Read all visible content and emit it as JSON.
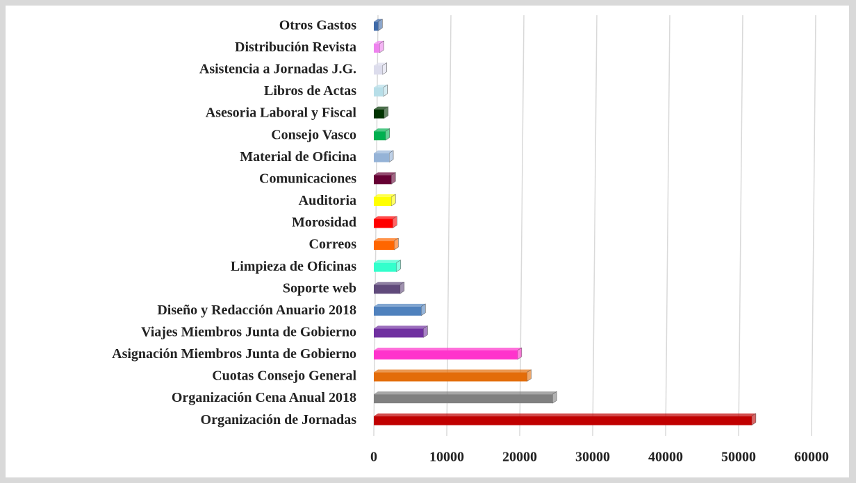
{
  "chart_data": {
    "type": "bar",
    "orientation": "horizontal",
    "categories": [
      "Organización de Jornadas",
      "Organización Cena Anual 2018",
      "Cuotas Consejo General",
      "Asignación Miembros Junta de Gobierno",
      "Viajes Miembros Junta de Gobierno",
      "Diseño y Redacción Anuario 2018",
      "Soporte web",
      "Limpieza de Oficinas",
      "Correos",
      "Morosidad",
      "Auditoria",
      "Comunicaciones",
      "Material de Oficina",
      "Consejo Vasco",
      "Asesoria Laboral y Fiscal",
      "Libros de Actas",
      "Asistencia a Jornadas J.G.",
      "Distribución Revista",
      "Otros Gastos"
    ],
    "values": [
      51800,
      24500,
      21000,
      19700,
      6800,
      6500,
      3600,
      3100,
      2800,
      2600,
      2400,
      2400,
      2100,
      1600,
      1400,
      1300,
      1200,
      800,
      600
    ],
    "colors": [
      "#c00000",
      "#808080",
      "#e36c09",
      "#ff33cc",
      "#7030a0",
      "#4f81bd",
      "#604a7b",
      "#33ffcc",
      "#ff6600",
      "#ff0000",
      "#ffff00",
      "#660033",
      "#95b3d7",
      "#00b050",
      "#003300",
      "#b7dee8",
      "#dcdcec",
      "#ee82ee",
      "#3f6aa8"
    ],
    "xlim": [
      0,
      60000
    ],
    "xticks": [
      0,
      10000,
      20000,
      30000,
      40000,
      50000,
      60000
    ],
    "grid": true
  }
}
